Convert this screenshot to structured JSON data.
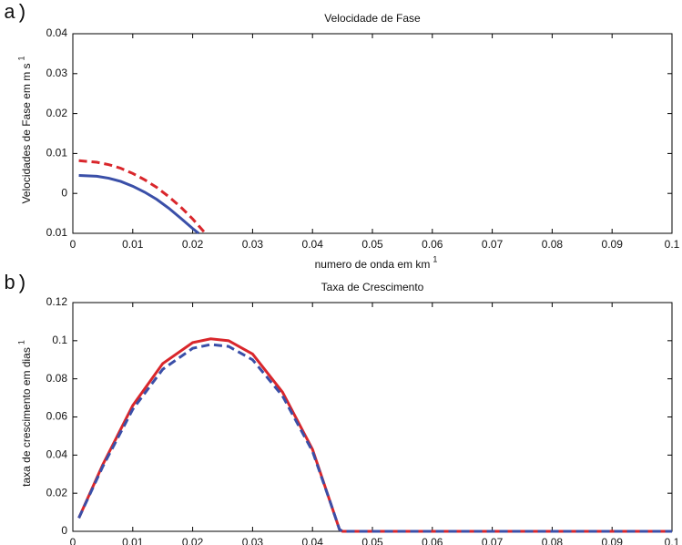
{
  "chart_data": [
    {
      "type": "line",
      "panel": "a)",
      "title": "Velocidade de Fase",
      "xlabel": "numero de onda em  km",
      "xlabel_exp": "1",
      "ylabel": "Velocidades de Fase em m s",
      "ylabel_exp": "1",
      "xlim": [
        0,
        0.1
      ],
      "xticks": [
        0,
        0.01,
        0.02,
        0.03,
        0.04,
        0.05,
        0.06,
        0.07,
        0.08,
        0.09,
        0.1
      ],
      "ylim": [
        -0.01,
        0.04
      ],
      "yticks": [
        {
          "value": -0.01,
          "label": "0.01"
        },
        0,
        0.01,
        0.02,
        0.03,
        0.04
      ],
      "series": [
        {
          "color": "#3a4fa8",
          "dashed": false,
          "x": [
            0.001,
            0.004,
            0.006,
            0.008,
            0.01,
            0.012,
            0.014,
            0.016,
            0.018,
            0.02,
            0.021
          ],
          "values": [
            0.0045,
            0.0043,
            0.0038,
            0.003,
            0.0018,
            0.0003,
            -0.0015,
            -0.0037,
            -0.0062,
            -0.0088,
            -0.01
          ]
        },
        {
          "color": "#d9262b",
          "dashed": true,
          "x": [
            0.001,
            0.004,
            0.006,
            0.008,
            0.01,
            0.012,
            0.014,
            0.016,
            0.018,
            0.02,
            0.022
          ],
          "values": [
            0.0082,
            0.0078,
            0.0072,
            0.0063,
            0.005,
            0.0034,
            0.0015,
            -0.0008,
            -0.0034,
            -0.0064,
            -0.0098
          ]
        }
      ]
    },
    {
      "type": "line",
      "panel": "b)",
      "title": "Taxa de Crescimento",
      "xlabel": "numero de onda em  km",
      "xlabel_exp": "1",
      "ylabel": "taxa de crescimento em dias",
      "ylabel_exp": "1",
      "xlim": [
        0,
        0.1
      ],
      "xticks": [
        0,
        0.01,
        0.02,
        0.03,
        0.04,
        0.05,
        0.06,
        0.07,
        0.08,
        0.09,
        0.1
      ],
      "ylim": [
        0,
        0.12
      ],
      "yticks": [
        0,
        0.02,
        0.04,
        0.06,
        0.08,
        0.1,
        0.12
      ],
      "series": [
        {
          "color": "#d9262b",
          "dashed": false,
          "x": [
            0.001,
            0.005,
            0.01,
            0.015,
            0.02,
            0.023,
            0.026,
            0.03,
            0.035,
            0.04,
            0.043,
            0.0445,
            0.045,
            0.1
          ],
          "values": [
            0.007,
            0.035,
            0.066,
            0.088,
            0.099,
            0.101,
            0.1,
            0.093,
            0.073,
            0.043,
            0.015,
            0.001,
            0,
            0
          ]
        },
        {
          "color": "#3a4fa8",
          "dashed": true,
          "x": [
            0.001,
            0.005,
            0.01,
            0.015,
            0.02,
            0.023,
            0.026,
            0.03,
            0.035,
            0.04,
            0.043,
            0.0445,
            0.045,
            0.1
          ],
          "values": [
            0.007,
            0.034,
            0.064,
            0.085,
            0.096,
            0.098,
            0.097,
            0.09,
            0.071,
            0.042,
            0.015,
            0.001,
            0,
            0
          ]
        }
      ]
    }
  ]
}
